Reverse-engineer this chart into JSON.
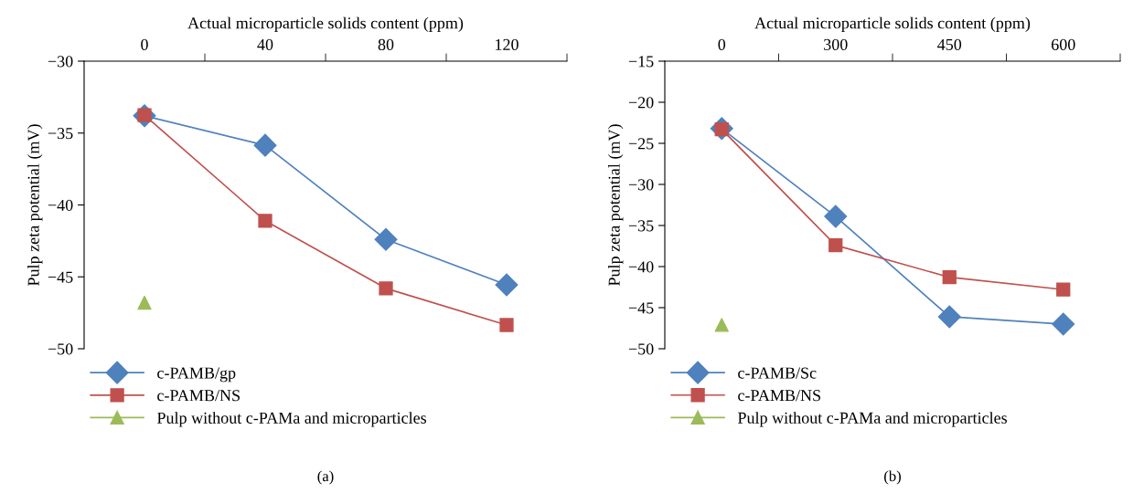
{
  "chart_data": [
    {
      "type": "line",
      "xlabel": "Actual microparticle solids content (ppm)",
      "ylabel": "Pulp zeta potential (mV)",
      "categories": [
        "0",
        "40",
        "80",
        "120"
      ],
      "ylim": [
        -50,
        -30
      ],
      "yticks": [
        -50,
        -45,
        -40,
        -35,
        -30
      ],
      "grid": false,
      "legend": "bottom left",
      "annotations": [
        "(a)"
      ],
      "series": [
        {
          "name": "c-PAMB/gp",
          "color": "#4f81bd",
          "marker": "diamond",
          "values": [
            -33.8,
            -35.85,
            -42.4,
            -45.55
          ]
        },
        {
          "name": "c-PAMB/NS",
          "color": "#c0504d",
          "marker": "square",
          "values": [
            -33.75,
            -41.1,
            -45.8,
            -48.35
          ]
        },
        {
          "name": "Pulp without c-PAMa and microparticles",
          "type": "scatter",
          "color": "#9bbb59",
          "marker": "triangle",
          "values": [
            -46.8,
            null,
            null,
            null
          ]
        }
      ]
    },
    {
      "type": "line",
      "xlabel": "Actual microparticle solids content (ppm)",
      "ylabel": "Pulp zeta potential (mV)",
      "categories": [
        "0",
        "300",
        "450",
        "600"
      ],
      "ylim": [
        -50,
        -15
      ],
      "yticks": [
        -50,
        -45,
        -40,
        -35,
        -30,
        -25,
        -20,
        -15
      ],
      "grid": false,
      "legend": "bottom left",
      "annotations": [
        "(b)"
      ],
      "series": [
        {
          "name": "c-PAMB/Sc",
          "color": "#4f81bd",
          "marker": "diamond",
          "values": [
            -23.2,
            -33.9,
            -46.1,
            -47.0
          ]
        },
        {
          "name": "c-PAMB/NS",
          "color": "#c0504d",
          "marker": "square",
          "values": [
            -23.3,
            -37.4,
            -41.3,
            -42.8
          ]
        },
        {
          "name": "Pulp without c-PAMa and microparticles",
          "type": "scatter",
          "color": "#9bbb59",
          "marker": "triangle",
          "values": [
            -47.1,
            null,
            null,
            null
          ]
        }
      ]
    }
  ]
}
